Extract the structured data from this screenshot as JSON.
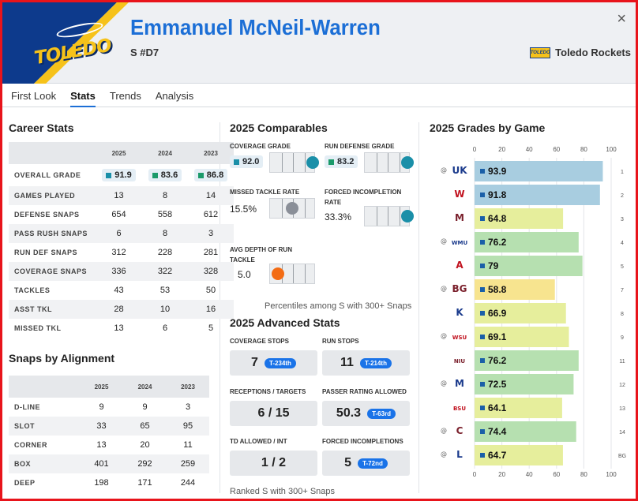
{
  "header": {
    "name": "Emmanuel McNeil-Warren",
    "position": "S #D7",
    "team": "Toledo Rockets",
    "logo_text": "TOLEDO",
    "team_logo_text": "TOLEDO",
    "close": "×"
  },
  "tabs": [
    "First Look",
    "Stats",
    "Trends",
    "Analysis"
  ],
  "active_tab": "Stats",
  "career": {
    "title": "Career Stats",
    "years": [
      "2025",
      "2024",
      "2023"
    ],
    "rows": [
      {
        "label": "OVERALL GRADE",
        "values": [
          "91.9",
          "83.6",
          "86.8"
        ]
      },
      {
        "label": "GAMES PLAYED",
        "values": [
          "13",
          "8",
          "14"
        ]
      },
      {
        "label": "DEFENSE SNAPS",
        "values": [
          "654",
          "558",
          "612"
        ]
      },
      {
        "label": "PASS RUSH SNAPS",
        "values": [
          "6",
          "8",
          "3"
        ]
      },
      {
        "label": "RUN DEF SNAPS",
        "values": [
          "312",
          "228",
          "281"
        ]
      },
      {
        "label": "COVERAGE SNAPS",
        "values": [
          "336",
          "322",
          "328"
        ]
      },
      {
        "label": "TACKLES",
        "values": [
          "43",
          "53",
          "50"
        ]
      },
      {
        "label": "ASST TKL",
        "values": [
          "28",
          "10",
          "16"
        ]
      },
      {
        "label": "MISSED TKL",
        "values": [
          "13",
          "6",
          "5"
        ]
      }
    ],
    "grade_colors": [
      "#1a8fa8",
      "#1a9a6a",
      "#1a9a6a"
    ]
  },
  "alignment": {
    "title": "Snaps by Alignment",
    "years": [
      "2025",
      "2024",
      "2023"
    ],
    "rows": [
      {
        "label": "D-LINE",
        "values": [
          "9",
          "9",
          "3"
        ]
      },
      {
        "label": "SLOT",
        "values": [
          "33",
          "65",
          "95"
        ]
      },
      {
        "label": "CORNER",
        "values": [
          "13",
          "20",
          "11"
        ]
      },
      {
        "label": "BOX",
        "values": [
          "401",
          "292",
          "259"
        ]
      },
      {
        "label": "DEEP",
        "values": [
          "198",
          "171",
          "244"
        ]
      }
    ]
  },
  "comparables": {
    "title": "2025 Comparables",
    "items": [
      {
        "label": "COVERAGE GRADE",
        "value": "92.0",
        "chip": true,
        "chip_color": "#1a8fa8",
        "percentile": 97,
        "dot_color": "#1a8fa8"
      },
      {
        "label": "RUN DEFENSE GRADE",
        "value": "83.2",
        "chip": true,
        "chip_color": "#1a9a6a",
        "percentile": 97,
        "dot_color": "#1a8fa8"
      },
      {
        "label": "MISSED TACKLE RATE",
        "value": "15.5%",
        "chip": false,
        "percentile": 48,
        "dot_color": "#8a8f98"
      },
      {
        "label": "FORCED INCOMPLETION RATE",
        "value": "33.3%",
        "chip": false,
        "percentile": 97,
        "dot_color": "#1a8fa8"
      },
      {
        "label": "AVG DEPTH OF RUN TACKLE",
        "value": "5.0",
        "chip": false,
        "percentile": 18,
        "dot_color": "#f36c14"
      }
    ],
    "note": "Percentiles among S with 300+ Snaps"
  },
  "advanced": {
    "title": "2025 Advanced Stats",
    "items": [
      {
        "label": "COVERAGE STOPS",
        "value": "7",
        "badge": "T-234th"
      },
      {
        "label": "RUN STOPS",
        "value": "11",
        "badge": "T-214th"
      },
      {
        "label": "RECEPTIONS / TARGETS",
        "value": "6 / 15",
        "badge": ""
      },
      {
        "label": "PASSER RATING ALLOWED",
        "value": "50.3",
        "badge": "T-63rd"
      },
      {
        "label": "TD ALLOWED / INT",
        "value": "1 / 2",
        "badge": ""
      },
      {
        "label": "FORCED INCOMPLETIONS",
        "value": "5",
        "badge": "T-72nd"
      }
    ],
    "note": "Ranked S with 300+ Snaps"
  },
  "chart_data": {
    "type": "bar",
    "title": "2025 Grades by Game",
    "xlim": [
      0,
      100
    ],
    "ticks": [
      "0",
      "20",
      "40",
      "60",
      "80",
      "100"
    ],
    "games": [
      {
        "week": "1",
        "opp_icon": "UK",
        "home": false,
        "grade": 93.9,
        "label": "93.9",
        "color": "#a8cde0"
      },
      {
        "week": "2",
        "opp_icon": "W",
        "home": true,
        "grade": 91.8,
        "label": "91.8",
        "color": "#a8cde0"
      },
      {
        "week": "3",
        "opp_icon": "M",
        "home": true,
        "grade": 64.8,
        "label": "64.8",
        "color": "#e6ee9c"
      },
      {
        "week": "4",
        "opp_icon": "WMU",
        "home": false,
        "grade": 76.2,
        "label": "76.2",
        "color": "#b6e0b0"
      },
      {
        "week": "5",
        "opp_icon": "A",
        "home": true,
        "grade": 79,
        "label": "79",
        "color": "#b6e0b0"
      },
      {
        "week": "7",
        "opp_icon": "BG",
        "home": false,
        "grade": 58.8,
        "label": "58.8",
        "color": "#f7e48f"
      },
      {
        "week": "8",
        "opp_icon": "K",
        "home": true,
        "grade": 66.9,
        "label": "66.9",
        "color": "#e6ee9c"
      },
      {
        "week": "9",
        "opp_icon": "WSU",
        "home": false,
        "grade": 69.1,
        "label": "69.1",
        "color": "#e6ee9c"
      },
      {
        "week": "11",
        "opp_icon": "NIU",
        "home": true,
        "grade": 76.2,
        "label": "76.2",
        "color": "#b6e0b0"
      },
      {
        "week": "12",
        "opp_icon": "M",
        "home": false,
        "grade": 72.5,
        "label": "72.5",
        "color": "#b6e0b0"
      },
      {
        "week": "13",
        "opp_icon": "BSU",
        "home": true,
        "grade": 64.1,
        "label": "64.1",
        "color": "#e6ee9c"
      },
      {
        "week": "14",
        "opp_icon": "C",
        "home": false,
        "grade": 74.4,
        "label": "74.4",
        "color": "#b6e0b0"
      },
      {
        "week": "BG",
        "opp_icon": "L",
        "home": false,
        "grade": 64.7,
        "label": "64.7",
        "color": "#e6ee9c"
      }
    ]
  }
}
